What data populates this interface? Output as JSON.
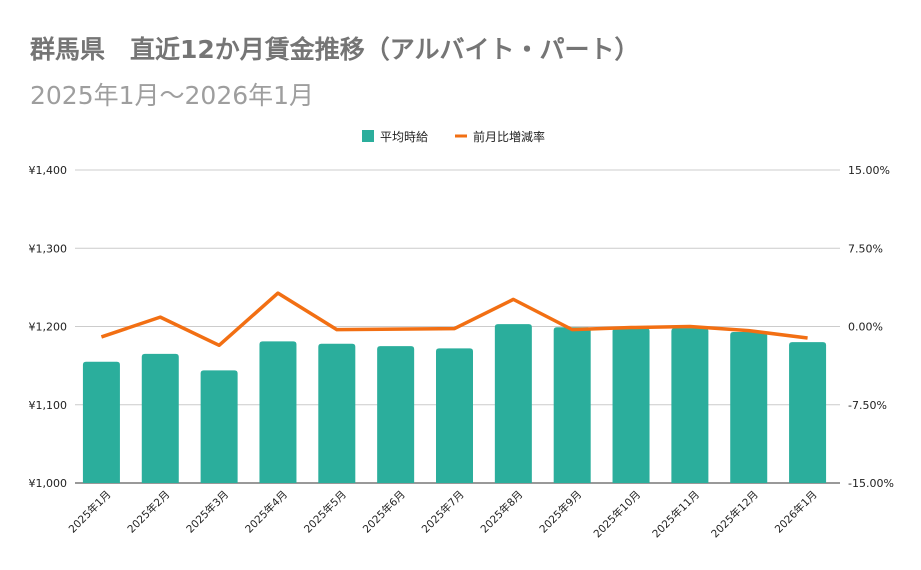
{
  "chart_data": {
    "type": "bar",
    "title": "群馬県　直近12か月賃金推移（アルバイト・パート）",
    "subtitle": "2025年1月～2026年1月",
    "categories": [
      "2025年1月",
      "2025年2月",
      "2025年3月",
      "2025年4月",
      "2025年5月",
      "2025年6月",
      "2025年7月",
      "2025年8月",
      "2025年9月",
      "2025年10月",
      "2025年11月",
      "2025年12月",
      "2026年1月"
    ],
    "series": [
      {
        "name": "平均時給",
        "type": "bar",
        "axis": "left",
        "color": "#2bae9c",
        "values": [
          1155,
          1165,
          1144,
          1181,
          1178,
          1175,
          1172,
          1203,
          1199,
          1198,
          1198,
          1193,
          1180
        ]
      },
      {
        "name": "前月比増減率",
        "type": "line",
        "axis": "right",
        "color": "#f26f13",
        "values": [
          -1.0,
          0.9,
          -1.8,
          3.2,
          -0.3,
          -0.25,
          -0.2,
          2.6,
          -0.3,
          -0.1,
          0.0,
          -0.4,
          -1.1
        ]
      }
    ],
    "y_left": {
      "min": 1000,
      "max": 1400,
      "ticks": [
        "¥1,000",
        "¥1,100",
        "¥1,200",
        "¥1,300",
        "¥1,400"
      ]
    },
    "y_right": {
      "min": -15,
      "max": 15,
      "ticks": [
        "-15.00%",
        "-7.50%",
        "0.00%",
        "7.50%",
        "15.00%"
      ]
    },
    "grid": true,
    "legend": "top"
  }
}
